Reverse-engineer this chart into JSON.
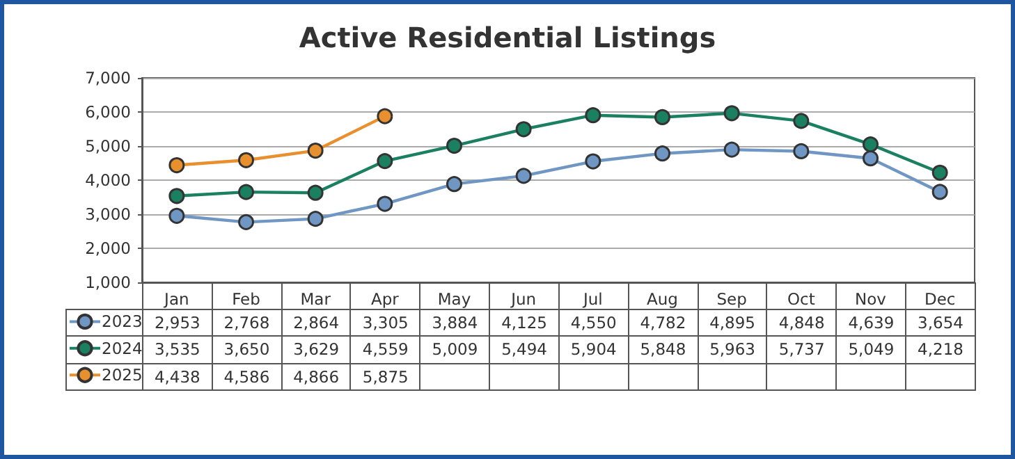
{
  "chart_data": {
    "type": "line",
    "title": "Active Residential Listings",
    "categories": [
      "Jan",
      "Feb",
      "Mar",
      "Apr",
      "May",
      "Jun",
      "Jul",
      "Aug",
      "Sep",
      "Oct",
      "Nov",
      "Dec"
    ],
    "series": [
      {
        "name": "2023",
        "color": "#7097c4",
        "values": [
          2953,
          2768,
          2864,
          3305,
          3884,
          4125,
          4550,
          4782,
          4895,
          4848,
          4639,
          3654
        ],
        "value_labels": [
          "2,953",
          "2,768",
          "2,864",
          "3,305",
          "3,884",
          "4,125",
          "4,550",
          "4,782",
          "4,895",
          "4,848",
          "4,639",
          "3,654"
        ]
      },
      {
        "name": "2024",
        "color": "#1a8060",
        "values": [
          3535,
          3650,
          3629,
          4559,
          5009,
          5494,
          5904,
          5848,
          5963,
          5737,
          5049,
          4218
        ],
        "value_labels": [
          "3,535",
          "3,650",
          "3,629",
          "4,559",
          "5,009",
          "5,494",
          "5,904",
          "5,848",
          "5,963",
          "5,737",
          "5,049",
          "4,218"
        ]
      },
      {
        "name": "2025",
        "color": "#e8902e",
        "values": [
          4438,
          4586,
          4866,
          5875,
          null,
          null,
          null,
          null,
          null,
          null,
          null,
          null
        ],
        "value_labels": [
          "4,438",
          "4,586",
          "4,866",
          "5,875",
          null,
          null,
          null,
          null,
          null,
          null,
          null,
          null
        ]
      }
    ],
    "ylim": [
      1000,
      7000
    ],
    "yticks": [
      {
        "value": 1000,
        "label": "1,000"
      },
      {
        "value": 2000,
        "label": "2,000"
      },
      {
        "value": 3000,
        "label": "3,000"
      },
      {
        "value": 4000,
        "label": "4,000"
      },
      {
        "value": 5000,
        "label": "5,000"
      },
      {
        "value": 6000,
        "label": "6,000"
      },
      {
        "value": 7000,
        "label": "7,000"
      }
    ],
    "grid": "y",
    "legend": "bottom left",
    "marker": "circle",
    "line_style": "solid"
  }
}
